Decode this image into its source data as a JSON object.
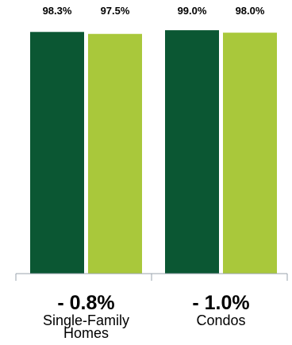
{
  "chart_data": {
    "type": "bar",
    "categories": [
      "Single-Family Homes",
      "Condos"
    ],
    "category_lines": [
      [
        "Single-Family",
        "Homes"
      ],
      [
        "Condos"
      ]
    ],
    "changes": [
      "- 0.8%",
      "- 1.0%"
    ],
    "series": [
      {
        "values": [
          98.3,
          99.0
        ],
        "color": "#0b5733"
      },
      {
        "values": [
          97.5,
          98.0
        ],
        "color": "#a9c83b"
      }
    ],
    "data_labels": [
      [
        "98.3%",
        "99.0%"
      ],
      [
        "97.5%",
        "98.0%"
      ]
    ],
    "ylim": [
      0,
      100
    ]
  }
}
